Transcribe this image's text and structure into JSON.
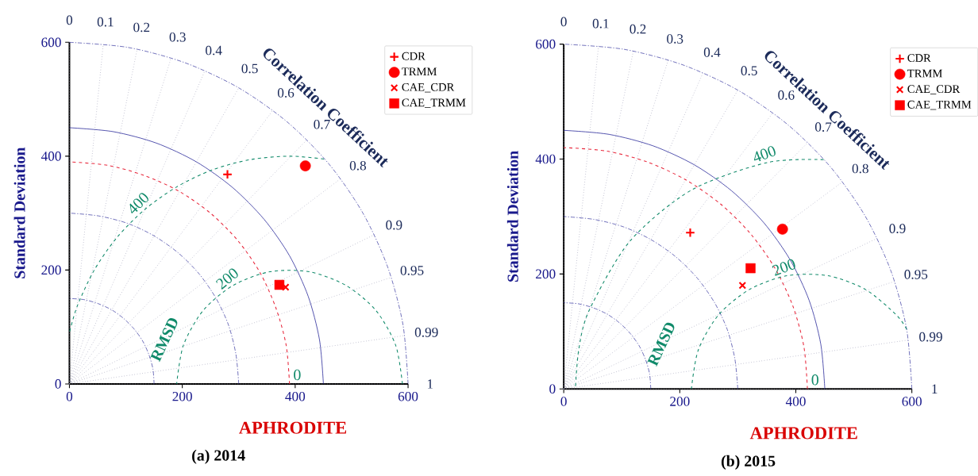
{
  "chart_data": [
    {
      "type": "scatter",
      "title": "(a) 2014",
      "xlabel": "APHRODITE",
      "ylabel": "Standard Deviation",
      "xlim": [
        0,
        600
      ],
      "ylim": [
        0,
        600
      ],
      "xticks": [
        0,
        200,
        400,
        600
      ],
      "yticks": [
        0,
        200,
        400,
        600
      ],
      "legend": "top right",
      "series": [
        {
          "name": "CDR",
          "color": "#ff0000",
          "marker": "plus",
          "x": [
            280
          ],
          "values": [
            368
          ]
        },
        {
          "name": "TRMM",
          "color": "#ff0000",
          "marker": "circle",
          "x": [
            418
          ],
          "values": [
            383
          ]
        },
        {
          "name": "CAE_CDR",
          "color": "#ff0000",
          "marker": "cross",
          "x": [
            383
          ],
          "values": [
            170
          ]
        },
        {
          "name": "CAE_TRMM",
          "color": "#ff0000",
          "marker": "square",
          "x": [
            372
          ],
          "values": [
            174
          ]
        },
        {
          "type": "line",
          "color": "#8080a0",
          "line_style": "dotted",
          "x": [
            0,
            0
          ],
          "values": [
            0,
            600
          ]
        },
        {
          "type": "line",
          "color": "#8080a0",
          "line_style": "dotted",
          "x": [
            0,
            60
          ],
          "values": [
            0,
            597
          ]
        },
        {
          "type": "line",
          "color": "#8080a0",
          "line_style": "dotted",
          "x": [
            0,
            120
          ],
          "values": [
            0,
            588
          ]
        },
        {
          "type": "line",
          "color": "#8080a0",
          "line_style": "dotted",
          "x": [
            0,
            180
          ],
          "values": [
            0,
            572
          ]
        },
        {
          "type": "line",
          "color": "#8080a0",
          "line_style": "dotted",
          "x": [
            0,
            240
          ],
          "values": [
            0,
            550
          ]
        },
        {
          "type": "line",
          "color": "#8080a0",
          "line_style": "dotted",
          "x": [
            0,
            300
          ],
          "values": [
            0,
            520
          ]
        },
        {
          "type": "line",
          "color": "#8080a0",
          "line_style": "dotted",
          "x": [
            0,
            360
          ],
          "values": [
            0,
            480
          ]
        },
        {
          "type": "line",
          "color": "#8080a0",
          "line_style": "dotted",
          "x": [
            0,
            420
          ],
          "values": [
            0,
            428
          ]
        },
        {
          "type": "line",
          "color": "#8080a0",
          "line_style": "dotted",
          "x": [
            0,
            480
          ],
          "values": [
            0,
            360
          ]
        },
        {
          "type": "line",
          "color": "#8080a0",
          "line_style": "dotted",
          "x": [
            0,
            540
          ],
          "values": [
            0,
            262
          ]
        },
        {
          "type": "line",
          "color": "#8080a0",
          "line_style": "dotted",
          "x": [
            0,
            570
          ],
          "values": [
            0,
            187
          ]
        },
        {
          "type": "line",
          "color": "#8080a0",
          "line_style": "dotted",
          "x": [
            0,
            594
          ],
          "values": [
            0,
            85
          ]
        },
        {
          "type": "line",
          "color": "#8080a0",
          "line_style": "dotted",
          "x": [
            0,
            600
          ],
          "values": [
            0,
            0
          ]
        },
        {
          "type": "line",
          "color": "#2a2a9a",
          "line_style": "dashdot",
          "x": [
            150,
            148,
            141,
            130,
            115,
            96,
            75,
            51,
            26,
            0
          ],
          "values": [
            0,
            26,
            51,
            75,
            96,
            115,
            130,
            141,
            148,
            150
          ]
        },
        {
          "type": "line",
          "color": "#2a2a9a",
          "line_style": "dashdot",
          "x": [
            300,
            295,
            282,
            260,
            230,
            193,
            150,
            103,
            52,
            0
          ],
          "values": [
            0,
            52,
            103,
            150,
            193,
            230,
            260,
            282,
            295,
            300
          ]
        },
        {
          "type": "line",
          "color": "#2a2a9a",
          "line_style": "solid",
          "x": [
            450,
            443,
            423,
            390,
            345,
            289,
            225,
            154,
            78,
            0
          ],
          "values": [
            0,
            78,
            154,
            225,
            289,
            345,
            390,
            423,
            443,
            450
          ]
        },
        {
          "type": "line",
          "color": "#2a2a9a",
          "line_style": "dashdot",
          "x": [
            600,
            591,
            564,
            520,
            460,
            386,
            300,
            205,
            104,
            0
          ],
          "values": [
            0,
            104,
            205,
            300,
            386,
            460,
            520,
            564,
            591,
            600
          ]
        },
        {
          "type": "line",
          "color": "#e8283c",
          "line_style": "dashed",
          "x": [
            390,
            384,
            366,
            338,
            299,
            251,
            195,
            133,
            68,
            0
          ],
          "values": [
            0,
            68,
            133,
            195,
            251,
            299,
            338,
            366,
            384,
            390
          ]
        },
        {
          "type": "line",
          "color": "#108a6a",
          "line_style": "dashed",
          "x": [
            451,
            390,
            321,
            253,
            190,
            133,
            84,
            44,
            14,
            0
          ],
          "values": [
            395,
            400,
            394,
            376,
            346,
            306,
            257,
            200,
            137,
            90
          ]
        },
        {
          "type": "line",
          "color": "#108a6a",
          "line_style": "dashed",
          "x": [
            590,
            578,
            543,
            490,
            425,
            355,
            290,
            237,
            202,
            190
          ],
          "values": [
            0,
            68,
            129,
            173,
            197,
            197,
            173,
            129,
            68,
            0
          ]
        }
      ],
      "annotations": [
        "Correlation Coefficient",
        "RMSD",
        "0",
        "0.1",
        "0.2",
        "0.3",
        "0.4",
        "0.5",
        "0.6",
        "0.7",
        "0.8",
        "0.9",
        "0.95",
        "0.99",
        "1",
        "400",
        "200",
        "0"
      ]
    },
    {
      "type": "scatter",
      "title": "(b) 2015",
      "xlabel": "APHRODITE",
      "ylabel": "Standard Deviation",
      "xlim": [
        0,
        600
      ],
      "ylim": [
        0,
        600
      ],
      "xticks": [
        0,
        200,
        400,
        600
      ],
      "yticks": [
        0,
        200,
        400,
        600
      ],
      "legend": "top right",
      "series": [
        {
          "name": "CDR",
          "color": "#ff0000",
          "marker": "plus",
          "x": [
            218
          ],
          "values": [
            272
          ]
        },
        {
          "name": "TRMM",
          "color": "#ff0000",
          "marker": "circle",
          "x": [
            377
          ],
          "values": [
            278
          ]
        },
        {
          "name": "CAE_CDR",
          "color": "#ff0000",
          "marker": "cross",
          "x": [
            308
          ],
          "values": [
            180
          ]
        },
        {
          "name": "CAE_TRMM",
          "color": "#ff0000",
          "marker": "square",
          "x": [
            322
          ],
          "values": [
            210
          ]
        },
        {
          "type": "line",
          "color": "#8080a0",
          "line_style": "dotted",
          "x": [
            0,
            0
          ],
          "values": [
            0,
            600
          ]
        },
        {
          "type": "line",
          "color": "#8080a0",
          "line_style": "dotted",
          "x": [
            0,
            60
          ],
          "values": [
            0,
            597
          ]
        },
        {
          "type": "line",
          "color": "#8080a0",
          "line_style": "dotted",
          "x": [
            0,
            120
          ],
          "values": [
            0,
            588
          ]
        },
        {
          "type": "line",
          "color": "#8080a0",
          "line_style": "dotted",
          "x": [
            0,
            180
          ],
          "values": [
            0,
            572
          ]
        },
        {
          "type": "line",
          "color": "#8080a0",
          "line_style": "dotted",
          "x": [
            0,
            240
          ],
          "values": [
            0,
            550
          ]
        },
        {
          "type": "line",
          "color": "#8080a0",
          "line_style": "dotted",
          "x": [
            0,
            300
          ],
          "values": [
            0,
            520
          ]
        },
        {
          "type": "line",
          "color": "#8080a0",
          "line_style": "dotted",
          "x": [
            0,
            360
          ],
          "values": [
            0,
            480
          ]
        },
        {
          "type": "line",
          "color": "#8080a0",
          "line_style": "dotted",
          "x": [
            0,
            420
          ],
          "values": [
            0,
            428
          ]
        },
        {
          "type": "line",
          "color": "#8080a0",
          "line_style": "dotted",
          "x": [
            0,
            480
          ],
          "values": [
            0,
            360
          ]
        },
        {
          "type": "line",
          "color": "#8080a0",
          "line_style": "dotted",
          "x": [
            0,
            540
          ],
          "values": [
            0,
            262
          ]
        },
        {
          "type": "line",
          "color": "#8080a0",
          "line_style": "dotted",
          "x": [
            0,
            570
          ],
          "values": [
            0,
            187
          ]
        },
        {
          "type": "line",
          "color": "#8080a0",
          "line_style": "dotted",
          "x": [
            0,
            594
          ],
          "values": [
            0,
            85
          ]
        },
        {
          "type": "line",
          "color": "#8080a0",
          "line_style": "dotted",
          "x": [
            0,
            600
          ],
          "values": [
            0,
            0
          ]
        },
        {
          "type": "line",
          "color": "#2a2a9a",
          "line_style": "dashdot",
          "x": [
            150,
            148,
            141,
            130,
            115,
            96,
            75,
            51,
            26,
            0
          ],
          "values": [
            0,
            26,
            51,
            75,
            96,
            115,
            130,
            141,
            148,
            150
          ]
        },
        {
          "type": "line",
          "color": "#2a2a9a",
          "line_style": "dashdot",
          "x": [
            300,
            295,
            282,
            260,
            230,
            193,
            150,
            103,
            52,
            0
          ],
          "values": [
            0,
            52,
            103,
            150,
            193,
            230,
            260,
            282,
            295,
            300
          ]
        },
        {
          "type": "line",
          "color": "#2a2a9a",
          "line_style": "solid",
          "x": [
            450,
            443,
            423,
            390,
            345,
            289,
            225,
            154,
            78,
            0
          ],
          "values": [
            0,
            78,
            154,
            225,
            289,
            345,
            390,
            423,
            443,
            450
          ]
        },
        {
          "type": "line",
          "color": "#2a2a9a",
          "line_style": "dashdot",
          "x": [
            600,
            591,
            564,
            520,
            460,
            386,
            300,
            205,
            104,
            0
          ],
          "values": [
            0,
            104,
            205,
            300,
            386,
            460,
            520,
            564,
            591,
            600
          ]
        },
        {
          "type": "line",
          "color": "#e8283c",
          "line_style": "dashed",
          "x": [
            420,
            414,
            395,
            364,
            322,
            270,
            210,
            144,
            73,
            0
          ],
          "values": [
            0,
            73,
            144,
            210,
            270,
            322,
            364,
            395,
            414,
            420
          ]
        },
        {
          "type": "line",
          "color": "#108a6a",
          "line_style": "dashed",
          "x": [
            448,
            351,
            220,
            114,
            44,
            26,
            20
          ],
          "values": [
            399,
            394,
            346,
            257,
            137,
            69,
            0
          ]
        },
        {
          "type": "line",
          "color": "#108a6a",
          "line_style": "dashed",
          "x": [
            591,
            573,
            520,
            455,
            385,
            320,
            267,
            232,
            220
          ],
          "values": [
            104,
            129,
            173,
            197,
            197,
            173,
            129,
            68,
            0
          ]
        }
      ],
      "annotations": [
        "Correlation Coefficient",
        "RMSD",
        "0",
        "0.1",
        "0.2",
        "0.3",
        "0.4",
        "0.5",
        "0.6",
        "0.7",
        "0.8",
        "0.9",
        "0.95",
        "0.99",
        "1",
        "400",
        "200",
        "0"
      ]
    }
  ]
}
